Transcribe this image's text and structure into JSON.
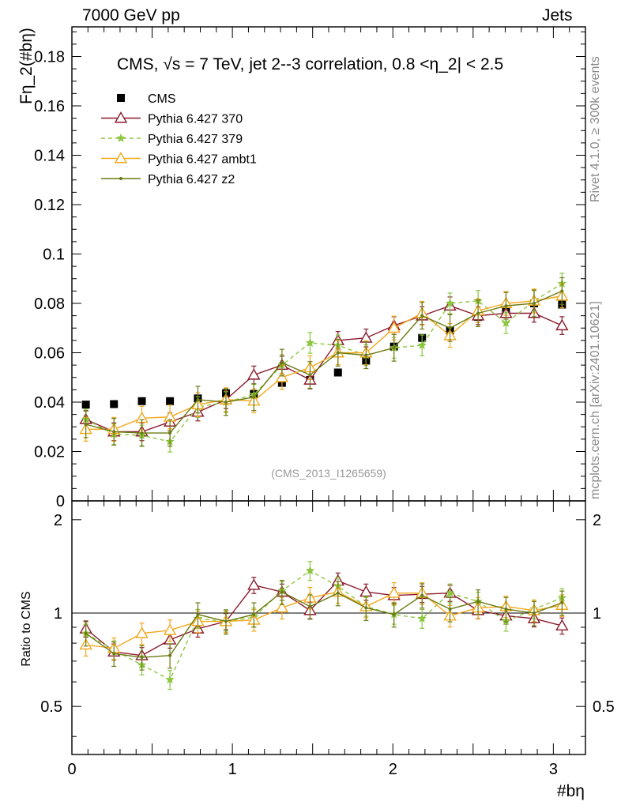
{
  "header": {
    "left": "7000 GeV pp",
    "right": "Jets"
  },
  "side_labels": {
    "rivet": "Rivet 4.1.0, ≥ 300k events",
    "mcplots": "mcplots.cern.ch [arXiv:2401.10621]"
  },
  "chart_data": [
    {
      "type": "scatter",
      "panel": "main",
      "title": "CMS, √s = 7 TeV, jet 2--3 correlation, 0.8 <η_2| < 2.5",
      "watermark": "(CMS_2013_I1265659)",
      "xlabel": "#bη",
      "ylabel": "Fη_2(#bη)",
      "xlim": [
        0,
        3.2
      ],
      "ylim": [
        0,
        0.192
      ],
      "yticks": [
        "0",
        "0.02",
        "0.04",
        "0.06",
        "0.08",
        "0.1",
        "0.12",
        "0.14",
        "0.16",
        "0.18"
      ],
      "x": [
        0.087,
        0.262,
        0.436,
        0.611,
        0.785,
        0.96,
        1.134,
        1.309,
        1.484,
        1.658,
        1.833,
        2.007,
        2.182,
        2.356,
        2.531,
        2.705,
        2.88,
        3.054
      ],
      "series": [
        {
          "name": "CMS",
          "style": "data",
          "color": "#000000",
          "values": [
            0.039,
            0.0392,
            0.0404,
            0.0404,
            0.0415,
            0.0436,
            0.0433,
            0.0478,
            0.049,
            0.052,
            0.0568,
            0.0625,
            0.066,
            0.069,
            0.0745,
            0.077,
            0.08,
            0.0795
          ]
        },
        {
          "name": "Pythia 6.427 370",
          "style": "triangle",
          "color": "#8b1a2e",
          "values": [
            0.033,
            0.028,
            0.028,
            0.032,
            0.036,
            0.041,
            0.051,
            0.055,
            0.049,
            0.065,
            0.066,
            0.071,
            0.075,
            0.079,
            0.075,
            0.076,
            0.076,
            0.071
          ]
        },
        {
          "name": "Pythia 6.427 379",
          "style": "star",
          "color": "#8dc641",
          "values": [
            0.033,
            0.027,
            0.0265,
            0.024,
            0.038,
            0.04,
            0.043,
            0.055,
            0.064,
            0.063,
            0.059,
            0.062,
            0.063,
            0.08,
            0.081,
            0.072,
            0.081,
            0.088
          ]
        },
        {
          "name": "Pythia 6.427 ambt1",
          "style": "triangle",
          "color": "#f2a81d",
          "values": [
            0.029,
            0.029,
            0.0335,
            0.034,
            0.039,
            0.041,
            0.0405,
            0.05,
            0.054,
            0.06,
            0.06,
            0.07,
            0.076,
            0.067,
            0.077,
            0.08,
            0.081,
            0.083
          ]
        },
        {
          "name": "Pythia 6.427 z2",
          "style": "dot",
          "color": "#6b7a12",
          "values": [
            0.031,
            0.028,
            0.0275,
            0.0275,
            0.041,
            0.04,
            0.042,
            0.056,
            0.051,
            0.06,
            0.059,
            0.062,
            0.075,
            0.07,
            0.076,
            0.079,
            0.08,
            0.085
          ]
        }
      ],
      "legend": [
        "CMS",
        "Pythia 6.427 370",
        "Pythia 6.427 379",
        "Pythia 6.427 ambt1",
        "Pythia 6.427 z2"
      ],
      "legend_position": "top-left"
    },
    {
      "type": "line",
      "panel": "ratio",
      "ylabel": "Ratio to CMS",
      "xlabel": "#bη",
      "xlim": [
        0,
        3.2
      ],
      "ylim": [
        0.35,
        2.3
      ],
      "yscale": "log",
      "yticks": [
        "0.5",
        "1",
        "2"
      ],
      "xticks": [
        "0",
        "1",
        "2",
        "3"
      ],
      "x": [
        0.087,
        0.262,
        0.436,
        0.611,
        0.785,
        0.96,
        1.134,
        1.309,
        1.484,
        1.658,
        1.833,
        2.007,
        2.182,
        2.356,
        2.531,
        2.705,
        2.88,
        3.054
      ],
      "series": [
        {
          "name": "Pythia 6.427 370",
          "color": "#8b1a2e",
          "values": [
            0.89,
            0.75,
            0.73,
            0.82,
            0.89,
            0.94,
            1.23,
            1.17,
            1.02,
            1.27,
            1.17,
            1.14,
            1.15,
            1.16,
            1.02,
            0.98,
            0.96,
            0.91
          ]
        },
        {
          "name": "Pythia 6.427 379",
          "color": "#8dc641",
          "values": [
            0.86,
            0.76,
            0.68,
            0.61,
            0.96,
            0.94,
            0.97,
            1.18,
            1.37,
            1.22,
            1.05,
            0.99,
            0.96,
            1.16,
            1.09,
            0.94,
            1.03,
            1.12
          ]
        },
        {
          "name": "Pythia 6.427 ambt1",
          "color": "#f2a81d",
          "values": [
            0.79,
            0.77,
            0.86,
            0.88,
            0.94,
            0.94,
            0.95,
            1.04,
            1.12,
            1.17,
            1.05,
            1.16,
            1.16,
            0.98,
            1.04,
            1.05,
            1.02,
            1.06
          ]
        },
        {
          "name": "Pythia 6.427 z2",
          "color": "#6b7a12",
          "values": [
            0.86,
            0.74,
            0.72,
            0.73,
            0.99,
            0.94,
            0.99,
            1.17,
            1.05,
            1.16,
            1.04,
            0.99,
            1.14,
            1.03,
            1.09,
            1.03,
            1.0,
            1.08
          ]
        }
      ]
    }
  ]
}
